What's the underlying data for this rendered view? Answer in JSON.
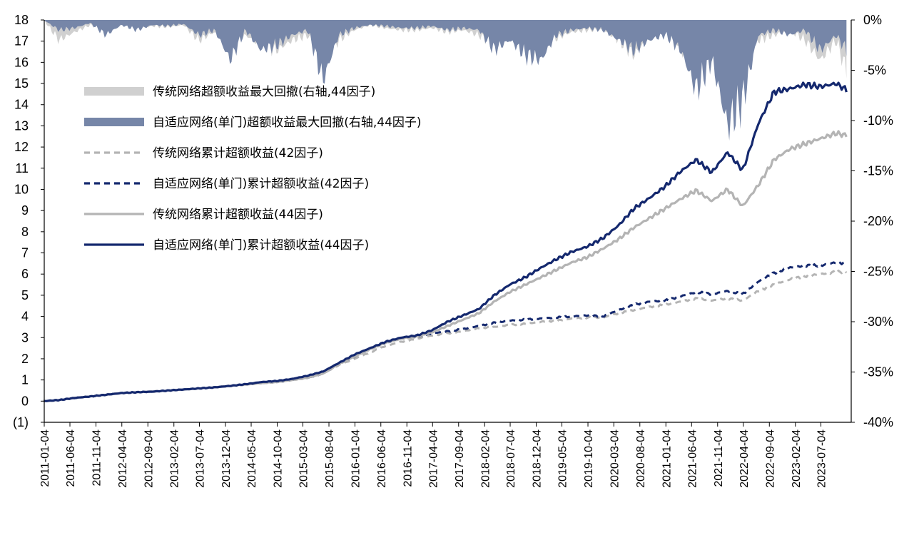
{
  "chart_data": {
    "type": "line",
    "title": "",
    "xlabel": "",
    "ylabel": "",
    "y_left_ticks": [
      "(1)",
      "0",
      "1",
      "2",
      "3",
      "4",
      "5",
      "6",
      "7",
      "8",
      "9",
      "10",
      "11",
      "12",
      "13",
      "14",
      "15",
      "16",
      "17",
      "18"
    ],
    "ylim_left": [
      -1,
      18
    ],
    "y_right_ticks": [
      "0%",
      "-5%",
      "-10%",
      "-15%",
      "-20%",
      "-25%",
      "-30%",
      "-35%",
      "-40%"
    ],
    "ylim_right": [
      -40,
      0
    ],
    "x_ticks": [
      "2011-01-04",
      "2011-06-04",
      "2011-11-04",
      "2012-04-04",
      "2012-09-04",
      "2013-02-04",
      "2013-07-04",
      "2013-12-04",
      "2014-05-04",
      "2014-10-04",
      "2015-03-04",
      "2015-08-04",
      "2016-01-04",
      "2016-06-04",
      "2016-11-04",
      "2017-04-04",
      "2017-09-04",
      "2018-02-04",
      "2018-07-04",
      "2018-12-04",
      "2019-05-04",
      "2019-10-04",
      "2020-03-04",
      "2020-08-04",
      "2021-01-04",
      "2021-06-04",
      "2021-11-04",
      "2022-04-04",
      "2022-09-04",
      "2023-02-04",
      "2023-07-04"
    ],
    "grid": false,
    "legend_position": "upper-left",
    "colors": {
      "trad_dd": "#d0d0d0",
      "adapt_dd": "#7686a8",
      "trad_42": "#b4b4b4",
      "adapt_42": "#14286e",
      "trad_44": "#b4b4b4",
      "adapt_44": "#14286e"
    },
    "series": [
      {
        "key": "trad_dd",
        "name": "传统网络超额收益最大回撤(右轴,44因子)",
        "axis": "right",
        "style": "area",
        "x": [
          "2011-01",
          "2011-04",
          "2011-07",
          "2011-10",
          "2012-01",
          "2012-04",
          "2012-07",
          "2012-10",
          "2013-01",
          "2013-04",
          "2013-07",
          "2013-10",
          "2014-01",
          "2014-04",
          "2014-07",
          "2014-10",
          "2015-01",
          "2015-04",
          "2015-07",
          "2015-10",
          "2016-01",
          "2016-04",
          "2016-07",
          "2016-10",
          "2017-01",
          "2017-04",
          "2017-07",
          "2017-10",
          "2018-01",
          "2018-04",
          "2018-07",
          "2018-10",
          "2019-01",
          "2019-04",
          "2019-07",
          "2019-10",
          "2020-01",
          "2020-04",
          "2020-07",
          "2020-10",
          "2021-01",
          "2021-04",
          "2021-07",
          "2021-10",
          "2022-01",
          "2022-04",
          "2022-07",
          "2022-10",
          "2023-01",
          "2023-04",
          "2023-07",
          "2023-10",
          "2023-12"
        ],
        "values": [
          0,
          -2.0,
          -1.2,
          -0.5,
          -1.0,
          -0.5,
          -0.8,
          -0.6,
          -0.7,
          -0.5,
          -2.0,
          -1.2,
          -2.8,
          -1.5,
          -2.5,
          -3.0,
          -2.0,
          -1.5,
          -4.0,
          -2.0,
          -1.0,
          -0.5,
          -0.8,
          -1.0,
          -1.0,
          -0.8,
          -1.2,
          -1.0,
          -1.5,
          -2.5,
          -1.5,
          -2.0,
          -2.5,
          -1.8,
          -1.2,
          -1.0,
          -1.0,
          -2.0,
          -3.5,
          -1.5,
          -1.0,
          -3.0,
          -5.5,
          -3.0,
          -4.0,
          -4.5,
          -2.0,
          -1.5,
          -1.0,
          -2.0,
          -4.0,
          -2.0,
          -5.0
        ]
      },
      {
        "key": "adapt_dd",
        "name": "自适应网络(单门)超额收益最大回撤(右轴,44因子)",
        "axis": "right",
        "style": "area",
        "x": [
          "2011-01",
          "2011-04",
          "2011-07",
          "2011-10",
          "2012-01",
          "2012-04",
          "2012-07",
          "2012-10",
          "2013-01",
          "2013-04",
          "2013-07",
          "2013-10",
          "2014-01",
          "2014-04",
          "2014-07",
          "2014-10",
          "2015-01",
          "2015-04",
          "2015-07",
          "2015-10",
          "2016-01",
          "2016-04",
          "2016-07",
          "2016-10",
          "2017-01",
          "2017-04",
          "2017-07",
          "2017-10",
          "2018-01",
          "2018-04",
          "2018-07",
          "2018-10",
          "2019-01",
          "2019-04",
          "2019-07",
          "2019-10",
          "2020-01",
          "2020-04",
          "2020-07",
          "2020-10",
          "2021-01",
          "2021-04",
          "2021-07",
          "2021-10",
          "2022-01",
          "2022-04",
          "2022-07",
          "2022-10",
          "2023-01",
          "2023-04",
          "2023-07",
          "2023-10",
          "2023-12"
        ],
        "values": [
          0,
          -1.0,
          -0.8,
          -0.3,
          -1.5,
          -0.5,
          -1.0,
          -0.5,
          -0.6,
          -0.4,
          -1.5,
          -1.0,
          -4.0,
          -1.0,
          -3.0,
          -2.5,
          -1.5,
          -1.0,
          -6.0,
          -1.5,
          -0.8,
          -0.5,
          -0.6,
          -0.8,
          -0.8,
          -0.6,
          -1.0,
          -0.8,
          -1.0,
          -3.0,
          -2.0,
          -3.5,
          -4.0,
          -1.5,
          -1.0,
          -0.8,
          -1.0,
          -2.0,
          -3.0,
          -2.0,
          -1.5,
          -3.0,
          -7.0,
          -4.0,
          -10.5,
          -8.0,
          -1.5,
          -1.0,
          -1.5,
          -1.0,
          -3.0,
          -1.5,
          -3.0
        ]
      },
      {
        "key": "trad_42",
        "name": "传统网络累计超额收益(42因子)",
        "axis": "left",
        "style": "dashed",
        "x": [
          "2011-01",
          "2011-04",
          "2011-07",
          "2011-10",
          "2012-01",
          "2012-04",
          "2012-07",
          "2012-10",
          "2013-01",
          "2013-04",
          "2013-07",
          "2013-10",
          "2014-01",
          "2014-04",
          "2014-07",
          "2014-10",
          "2015-01",
          "2015-04",
          "2015-07",
          "2015-10",
          "2016-01",
          "2016-04",
          "2016-07",
          "2016-10",
          "2017-01",
          "2017-04",
          "2017-07",
          "2017-10",
          "2018-01",
          "2018-04",
          "2018-07",
          "2018-10",
          "2019-01",
          "2019-04",
          "2019-07",
          "2019-10",
          "2020-01",
          "2020-04",
          "2020-07",
          "2020-10",
          "2021-01",
          "2021-04",
          "2021-07",
          "2021-10",
          "2022-01",
          "2022-04",
          "2022-07",
          "2022-10",
          "2023-01",
          "2023-04",
          "2023-07",
          "2023-10",
          "2023-12"
        ],
        "values": [
          0,
          0.05,
          0.15,
          0.22,
          0.3,
          0.38,
          0.42,
          0.45,
          0.5,
          0.55,
          0.6,
          0.65,
          0.72,
          0.78,
          0.85,
          0.9,
          1.0,
          1.1,
          1.3,
          1.7,
          2.0,
          2.3,
          2.6,
          2.8,
          2.95,
          3.1,
          3.2,
          3.3,
          3.45,
          3.5,
          3.6,
          3.65,
          3.75,
          3.8,
          3.9,
          3.95,
          3.95,
          4.15,
          4.3,
          4.45,
          4.55,
          4.7,
          4.85,
          4.75,
          4.85,
          4.75,
          5.2,
          5.5,
          5.75,
          5.9,
          6.0,
          6.1,
          6.1
        ]
      },
      {
        "key": "adapt_42",
        "name": "自适应网络(单门)累计超额收益(42因子)",
        "axis": "left",
        "style": "dashed",
        "x": [
          "2011-01",
          "2011-04",
          "2011-07",
          "2011-10",
          "2012-01",
          "2012-04",
          "2012-07",
          "2012-10",
          "2013-01",
          "2013-04",
          "2013-07",
          "2013-10",
          "2014-01",
          "2014-04",
          "2014-07",
          "2014-10",
          "2015-01",
          "2015-04",
          "2015-07",
          "2015-10",
          "2016-01",
          "2016-04",
          "2016-07",
          "2016-10",
          "2017-01",
          "2017-04",
          "2017-07",
          "2017-10",
          "2018-01",
          "2018-04",
          "2018-07",
          "2018-10",
          "2019-01",
          "2019-04",
          "2019-07",
          "2019-10",
          "2020-01",
          "2020-04",
          "2020-07",
          "2020-10",
          "2021-01",
          "2021-04",
          "2021-07",
          "2021-10",
          "2022-01",
          "2022-04",
          "2022-07",
          "2022-10",
          "2023-01",
          "2023-04",
          "2023-07",
          "2023-10",
          "2023-12"
        ],
        "values": [
          0,
          0.05,
          0.15,
          0.22,
          0.3,
          0.38,
          0.42,
          0.45,
          0.5,
          0.55,
          0.6,
          0.65,
          0.72,
          0.78,
          0.85,
          0.9,
          1.0,
          1.1,
          1.3,
          1.75,
          2.1,
          2.45,
          2.75,
          2.95,
          3.05,
          3.2,
          3.3,
          3.4,
          3.55,
          3.7,
          3.8,
          3.85,
          3.9,
          3.95,
          4.0,
          4.05,
          4.0,
          4.3,
          4.55,
          4.7,
          4.75,
          4.95,
          5.15,
          5.05,
          5.2,
          5.05,
          5.65,
          6.05,
          6.3,
          6.4,
          6.4,
          6.55,
          6.5
        ]
      },
      {
        "key": "trad_44",
        "name": "传统网络累计超额收益(44因子)",
        "axis": "left",
        "style": "solid",
        "x": [
          "2011-01",
          "2011-04",
          "2011-07",
          "2011-10",
          "2012-01",
          "2012-04",
          "2012-07",
          "2012-10",
          "2013-01",
          "2013-04",
          "2013-07",
          "2013-10",
          "2014-01",
          "2014-04",
          "2014-07",
          "2014-10",
          "2015-01",
          "2015-04",
          "2015-07",
          "2015-10",
          "2016-01",
          "2016-04",
          "2016-07",
          "2016-10",
          "2017-01",
          "2017-04",
          "2017-07",
          "2017-10",
          "2018-01",
          "2018-04",
          "2018-07",
          "2018-10",
          "2019-01",
          "2019-04",
          "2019-07",
          "2019-10",
          "2020-01",
          "2020-04",
          "2020-07",
          "2020-10",
          "2021-01",
          "2021-04",
          "2021-07",
          "2021-10",
          "2022-01",
          "2022-04",
          "2022-07",
          "2022-10",
          "2023-01",
          "2023-04",
          "2023-07",
          "2023-10",
          "2023-12"
        ],
        "values": [
          0,
          0.05,
          0.15,
          0.22,
          0.3,
          0.38,
          0.42,
          0.45,
          0.5,
          0.55,
          0.6,
          0.65,
          0.72,
          0.78,
          0.85,
          0.9,
          1.0,
          1.1,
          1.3,
          1.75,
          2.1,
          2.45,
          2.75,
          2.95,
          3.05,
          3.25,
          3.55,
          3.85,
          4.15,
          4.7,
          5.15,
          5.5,
          5.85,
          6.2,
          6.55,
          6.8,
          7.2,
          7.65,
          8.2,
          8.65,
          9.1,
          9.55,
          9.95,
          9.45,
          10.0,
          9.2,
          10.2,
          11.4,
          11.9,
          12.15,
          12.4,
          12.65,
          12.55
        ]
      },
      {
        "key": "adapt_44",
        "name": "自适应网络(单门)累计超额收益(44因子)",
        "axis": "left",
        "style": "solid",
        "x": [
          "2011-01",
          "2011-04",
          "2011-07",
          "2011-10",
          "2012-01",
          "2012-04",
          "2012-07",
          "2012-10",
          "2013-01",
          "2013-04",
          "2013-07",
          "2013-10",
          "2014-01",
          "2014-04",
          "2014-07",
          "2014-10",
          "2015-01",
          "2015-04",
          "2015-07",
          "2015-10",
          "2016-01",
          "2016-04",
          "2016-07",
          "2016-10",
          "2017-01",
          "2017-04",
          "2017-07",
          "2017-10",
          "2018-01",
          "2018-04",
          "2018-07",
          "2018-10",
          "2019-01",
          "2019-04",
          "2019-07",
          "2019-10",
          "2020-01",
          "2020-04",
          "2020-07",
          "2020-10",
          "2021-01",
          "2021-04",
          "2021-07",
          "2021-10",
          "2022-01",
          "2022-04",
          "2022-07",
          "2022-10",
          "2023-01",
          "2023-04",
          "2023-07",
          "2023-10",
          "2023-12"
        ],
        "values": [
          0,
          0.05,
          0.15,
          0.22,
          0.3,
          0.38,
          0.42,
          0.45,
          0.5,
          0.55,
          0.6,
          0.65,
          0.72,
          0.8,
          0.9,
          0.95,
          1.05,
          1.2,
          1.4,
          1.8,
          2.2,
          2.5,
          2.8,
          3.0,
          3.1,
          3.35,
          3.75,
          4.05,
          4.35,
          5.0,
          5.5,
          5.85,
          6.3,
          6.7,
          7.05,
          7.3,
          7.7,
          8.3,
          9.1,
          9.6,
          10.15,
          10.85,
          11.4,
          10.8,
          11.75,
          10.9,
          13.1,
          14.6,
          14.75,
          14.95,
          14.85,
          15.0,
          14.7
        ]
      }
    ]
  }
}
